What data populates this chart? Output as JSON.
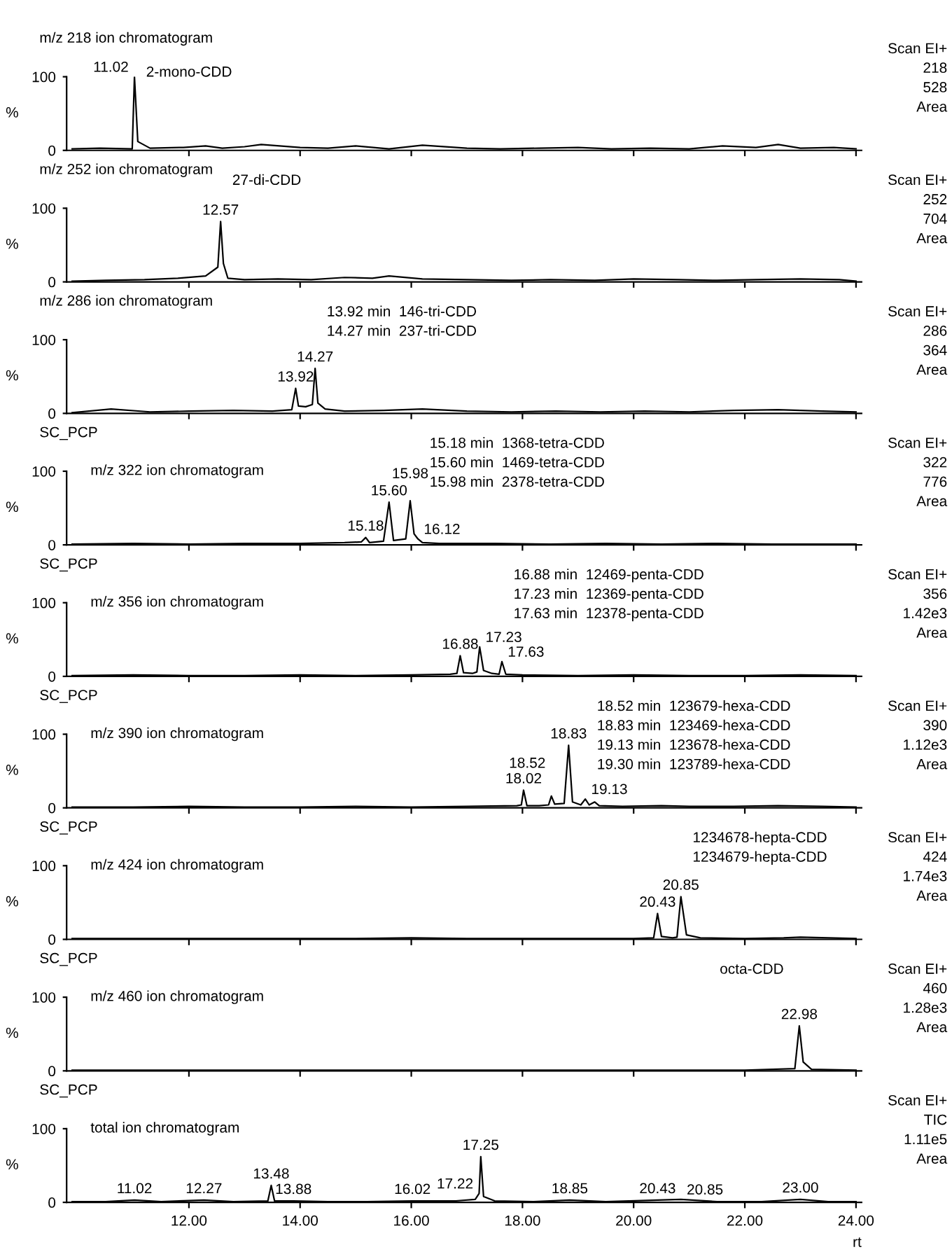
{
  "chart_data": [
    {
      "type": "line",
      "title": "m/z 218 ion chromatogram",
      "ylabel": "%",
      "xlim": [
        9.8,
        24.1
      ],
      "ylim": [
        0,
        100
      ],
      "yticks": [
        0,
        100
      ],
      "tick_labels": "y",
      "xticks": [
        {
          "value": 12,
          "label": null
        },
        {
          "value": 14,
          "label": null
        },
        {
          "value": 16,
          "label": null
        },
        {
          "value": 18,
          "label": null
        },
        {
          "value": 20,
          "label": null
        },
        {
          "value": 22,
          "label": null
        },
        {
          "value": 24,
          "label": null
        }
      ],
      "x": [
        9.9,
        10.4,
        10.98,
        11.02,
        11.08,
        11.3,
        11.9,
        12.3,
        12.6,
        13.0,
        13.3,
        14.0,
        14.5,
        15.0,
        15.6,
        16.2,
        17.0,
        17.6,
        18.3,
        19.0,
        19.6,
        20.3,
        21.0,
        21.6,
        22.2,
        22.6,
        23.0,
        23.6,
        24.0
      ],
      "series": [
        {
          "color": "#000000",
          "values": [
            2,
            3,
            2,
            100,
            12,
            3,
            4,
            6,
            3,
            5,
            8,
            4,
            3,
            6,
            2,
            7,
            3,
            2,
            3,
            4,
            2,
            3,
            2,
            6,
            4,
            8,
            3,
            4,
            2
          ]
        }
      ],
      "annotations": [
        "Scan EI+",
        "218",
        "528",
        "Area",
        {
          "text": "11.02",
          "x": 11.02,
          "y": 100
        },
        "2-mono-CDD"
      ]
    },
    {
      "type": "line",
      "title": "m/z 252 ion chromatogram",
      "ylabel": "%",
      "xlim": [
        9.8,
        24.1
      ],
      "ylim": [
        0,
        100
      ],
      "yticks": [
        0,
        100
      ],
      "tick_labels": "y",
      "xticks": [
        {
          "value": 12,
          "label": null
        },
        {
          "value": 14,
          "label": null
        },
        {
          "value": 16,
          "label": null
        },
        {
          "value": 18,
          "label": null
        },
        {
          "value": 20,
          "label": null
        },
        {
          "value": 22,
          "label": null
        },
        {
          "value": 24,
          "label": null
        }
      ],
      "x": [
        9.9,
        10.5,
        11.2,
        11.8,
        12.3,
        12.52,
        12.57,
        12.62,
        12.7,
        13.0,
        13.6,
        14.2,
        14.8,
        15.3,
        15.6,
        16.2,
        17.0,
        17.8,
        18.5,
        19.3,
        20.0,
        20.8,
        21.5,
        22.2,
        23.0,
        23.7,
        24.0
      ],
      "series": [
        {
          "color": "#000000",
          "values": [
            1,
            2,
            3,
            5,
            8,
            20,
            82,
            25,
            5,
            3,
            4,
            3,
            6,
            5,
            8,
            4,
            3,
            2,
            3,
            2,
            4,
            3,
            2,
            3,
            4,
            3,
            1
          ]
        }
      ],
      "annotations": [
        "Scan EI+",
        "252",
        "704",
        "Area",
        {
          "text": "12.57",
          "x": 12.57,
          "y": 82
        },
        "27-di-CDD"
      ]
    },
    {
      "type": "line",
      "title": "m/z 286 ion chromatogram",
      "ylabel": "%",
      "xlim": [
        9.8,
        24.1
      ],
      "ylim": [
        0,
        100
      ],
      "yticks": [
        0,
        100
      ],
      "tick_labels": "y",
      "xticks": [
        {
          "value": 12,
          "label": null
        },
        {
          "value": 14,
          "label": null
        },
        {
          "value": 16,
          "label": null
        },
        {
          "value": 18,
          "label": null
        },
        {
          "value": 20,
          "label": null
        },
        {
          "value": 22,
          "label": null
        },
        {
          "value": 24,
          "label": null
        }
      ],
      "x": [
        9.9,
        10.6,
        11.3,
        12.0,
        12.8,
        13.5,
        13.85,
        13.92,
        13.97,
        14.1,
        14.22,
        14.27,
        14.32,
        14.45,
        14.8,
        15.5,
        16.2,
        17.0,
        17.8,
        18.6,
        19.4,
        20.2,
        21.0,
        21.8,
        22.6,
        23.4,
        24.0
      ],
      "series": [
        {
          "color": "#000000",
          "values": [
            1,
            6,
            2,
            3,
            4,
            3,
            5,
            34,
            10,
            9,
            12,
            61,
            14,
            6,
            3,
            4,
            6,
            3,
            2,
            3,
            2,
            3,
            2,
            4,
            5,
            3,
            2
          ]
        }
      ],
      "annotations": [
        "Scan EI+",
        "286",
        "364",
        "Area",
        {
          "text": "13.92",
          "x": 13.92,
          "y": 34
        },
        {
          "text": "14.27",
          "x": 14.27,
          "y": 61
        },
        "13.92 min  146-tri-CDD",
        "14.27 min  237-tri-CDD"
      ]
    },
    {
      "type": "line",
      "subtitle": "SC_PCP",
      "title": "m/z 322 ion chromatogram",
      "ylabel": "%",
      "xlim": [
        9.8,
        24.1
      ],
      "ylim": [
        0,
        100
      ],
      "yticks": [
        0,
        100
      ],
      "tick_labels": "y",
      "xticks": [
        {
          "value": 12,
          "label": null
        },
        {
          "value": 14,
          "label": null
        },
        {
          "value": 16,
          "label": null
        },
        {
          "value": 18,
          "label": null
        },
        {
          "value": 20,
          "label": null
        },
        {
          "value": 22,
          "label": null
        },
        {
          "value": 24,
          "label": null
        }
      ],
      "x": [
        9.9,
        11.0,
        12.0,
        13.0,
        14.0,
        14.8,
        15.1,
        15.18,
        15.25,
        15.5,
        15.6,
        15.68,
        15.9,
        15.98,
        16.05,
        16.12,
        16.2,
        16.5,
        17.5,
        18.5,
        19.5,
        20.5,
        21.5,
        22.5,
        24.0
      ],
      "series": [
        {
          "color": "#000000",
          "values": [
            1,
            2,
            1,
            2,
            2,
            3,
            4,
            10,
            3,
            5,
            58,
            6,
            8,
            60,
            15,
            8,
            3,
            2,
            2,
            1,
            2,
            1,
            2,
            1,
            1
          ]
        }
      ],
      "annotations": [
        "Scan EI+",
        "322",
        "776",
        "Area",
        {
          "text": "15.18",
          "x": 15.18,
          "y": 10
        },
        {
          "text": "15.60",
          "x": 15.6,
          "y": 58
        },
        {
          "text": "15.98",
          "x": 15.98,
          "y": 60
        },
        {
          "text": "16.12",
          "x": 16.12,
          "y": 8
        },
        "15.18 min  1368-tetra-CDD",
        "15.60 min  1469-tetra-CDD",
        "15.98 min  2378-tetra-CDD"
      ]
    },
    {
      "type": "line",
      "subtitle": "SC_PCP",
      "title": "m/z 356 ion chromatogram",
      "ylabel": "%",
      "xlim": [
        9.8,
        24.1
      ],
      "ylim": [
        0,
        100
      ],
      "yticks": [
        0,
        100
      ],
      "tick_labels": "y",
      "xticks": [
        {
          "value": 12,
          "label": null
        },
        {
          "value": 14,
          "label": null
        },
        {
          "value": 16,
          "label": null
        },
        {
          "value": 18,
          "label": null
        },
        {
          "value": 20,
          "label": null
        },
        {
          "value": 22,
          "label": null
        },
        {
          "value": 24,
          "label": null
        }
      ],
      "x": [
        9.9,
        11,
        12,
        13,
        14,
        15,
        16,
        16.7,
        16.82,
        16.88,
        16.94,
        17.1,
        17.18,
        17.23,
        17.3,
        17.45,
        17.58,
        17.63,
        17.7,
        18.0,
        19,
        20,
        21,
        22,
        23,
        24.0
      ],
      "series": [
        {
          "color": "#000000",
          "values": [
            1,
            2,
            1,
            1,
            2,
            1,
            2,
            3,
            4,
            28,
            5,
            4,
            6,
            40,
            8,
            4,
            3,
            20,
            3,
            2,
            1,
            2,
            1,
            1,
            2,
            1
          ]
        }
      ],
      "annotations": [
        "Scan EI+",
        "356",
        "1.42e3",
        "Area",
        {
          "text": "16.88",
          "x": 16.88,
          "y": 28
        },
        {
          "text": "17.23",
          "x": 17.23,
          "y": 40
        },
        {
          "text": "17.63",
          "x": 17.63,
          "y": 20
        },
        "16.88 min  12469-penta-CDD",
        "17.23 min  12369-penta-CDD",
        "17.63 min  12378-penta-CDD"
      ]
    },
    {
      "type": "line",
      "subtitle": "SC_PCP",
      "title": "m/z 390 ion chromatogram",
      "ylabel": "%",
      "xlim": [
        9.8,
        24.1
      ],
      "ylim": [
        0,
        100
      ],
      "yticks": [
        0,
        100
      ],
      "tick_labels": "y",
      "xticks": [
        {
          "value": 12,
          "label": null
        },
        {
          "value": 14,
          "label": null
        },
        {
          "value": 16,
          "label": null
        },
        {
          "value": 18,
          "label": null
        },
        {
          "value": 20,
          "label": null
        },
        {
          "value": 22,
          "label": null
        },
        {
          "value": 24,
          "label": null
        }
      ],
      "x": [
        9.9,
        11,
        12,
        13,
        14,
        15,
        16,
        17,
        17.9,
        17.98,
        18.02,
        18.08,
        18.3,
        18.47,
        18.52,
        18.58,
        18.75,
        18.83,
        18.9,
        19.05,
        19.13,
        19.2,
        19.3,
        19.38,
        19.8,
        20.5,
        21,
        21.8,
        22.6,
        23.4,
        24.0
      ],
      "series": [
        {
          "color": "#000000",
          "values": [
            1,
            1,
            2,
            1,
            1,
            2,
            1,
            2,
            3,
            4,
            24,
            3,
            3,
            4,
            16,
            5,
            6,
            85,
            8,
            4,
            12,
            4,
            8,
            3,
            2,
            3,
            2,
            2,
            3,
            2,
            1
          ]
        }
      ],
      "annotations": [
        "Scan EI+",
        "390",
        "1.12e3",
        "Area",
        {
          "text": "18.02",
          "x": 18.02,
          "y": 24
        },
        {
          "text": "18.52",
          "x": 18.52,
          "y": 16
        },
        {
          "text": "18.83",
          "x": 18.83,
          "y": 85
        },
        {
          "text": "19.13",
          "x": 19.13,
          "y": 12
        },
        "18.52 min  123679-hexa-CDD",
        "18.83 min  123469-hexa-CDD",
        "19.13 min  123678-hexa-CDD",
        "19.30 min  123789-hexa-CDD"
      ]
    },
    {
      "type": "line",
      "subtitle": "SC_PCP",
      "title": "m/z 424 ion chromatogram",
      "ylabel": "%",
      "xlim": [
        9.8,
        24.1
      ],
      "ylim": [
        0,
        100
      ],
      "yticks": [
        0,
        100
      ],
      "tick_labels": "y",
      "xticks": [
        {
          "value": 12,
          "label": null
        },
        {
          "value": 14,
          "label": null
        },
        {
          "value": 16,
          "label": null
        },
        {
          "value": 18,
          "label": null
        },
        {
          "value": 20,
          "label": null
        },
        {
          "value": 22,
          "label": null
        },
        {
          "value": 24,
          "label": null
        }
      ],
      "x": [
        9.9,
        11,
        12,
        13,
        14,
        15,
        16,
        17,
        18,
        19,
        20,
        20.36,
        20.43,
        20.5,
        20.7,
        20.78,
        20.85,
        20.95,
        21.2,
        22,
        22.7,
        23,
        24.0
      ],
      "series": [
        {
          "color": "#000000",
          "values": [
            1,
            1,
            1,
            1,
            1,
            1,
            2,
            1,
            1,
            1,
            1,
            2,
            35,
            4,
            2,
            3,
            58,
            6,
            2,
            1,
            2,
            3,
            1
          ]
        }
      ],
      "annotations": [
        "Scan EI+",
        "424",
        "1.74e3",
        "Area",
        {
          "text": "20.43",
          "x": 20.43,
          "y": 35
        },
        {
          "text": "20.85",
          "x": 20.85,
          "y": 58
        },
        "1234678-hepta-CDD",
        "1234679-hepta-CDD"
      ]
    },
    {
      "type": "line",
      "subtitle": "SC_PCP",
      "title": "m/z 460 ion chromatogram",
      "ylabel": "%",
      "xlim": [
        9.8,
        24.1
      ],
      "ylim": [
        0,
        100
      ],
      "yticks": [
        0,
        100
      ],
      "tick_labels": "y",
      "xticks": [
        {
          "value": 12,
          "label": null
        },
        {
          "value": 14,
          "label": null
        },
        {
          "value": 16,
          "label": null
        },
        {
          "value": 18,
          "label": null
        },
        {
          "value": 20,
          "label": null
        },
        {
          "value": 22,
          "label": null
        },
        {
          "value": 24,
          "label": null
        }
      ],
      "x": [
        9.9,
        11,
        12,
        13,
        14,
        15,
        16,
        17,
        18,
        19,
        20,
        21,
        22,
        22.9,
        22.98,
        23.05,
        23.2,
        24.0
      ],
      "series": [
        {
          "color": "#000000",
          "values": [
            1,
            1,
            1,
            1,
            1,
            1,
            1,
            1,
            1,
            1,
            1,
            1,
            1,
            3,
            61,
            12,
            2,
            1
          ]
        }
      ],
      "annotations": [
        "Scan EI+",
        "460",
        "1.28e3",
        "Area",
        {
          "text": "22.98",
          "x": 22.98,
          "y": 61
        },
        "octa-CDD"
      ]
    },
    {
      "type": "line",
      "subtitle": "SC_PCP",
      "title": "total ion chromatogram",
      "ylabel": "%",
      "xlabel": "rt",
      "xlim": [
        9.8,
        24.1
      ],
      "ylim": [
        0,
        100
      ],
      "yticks": [
        0,
        100
      ],
      "xticks": [
        {
          "value": 12,
          "label": "12.00"
        },
        {
          "value": 14,
          "label": "14.00"
        },
        {
          "value": 16,
          "label": "16.00"
        },
        {
          "value": 18,
          "label": "18.00"
        },
        {
          "value": 20,
          "label": "20.00"
        },
        {
          "value": 22,
          "label": "22.00"
        },
        {
          "value": 24,
          "label": "24.00"
        }
      ],
      "x": [
        9.9,
        10.5,
        11.02,
        11.5,
        12.27,
        12.8,
        13.42,
        13.48,
        13.54,
        13.88,
        14.5,
        15.2,
        16.02,
        16.8,
        17.15,
        17.22,
        17.25,
        17.3,
        17.5,
        18.2,
        18.85,
        19.5,
        20.43,
        20.85,
        21.5,
        22.3,
        23.0,
        23.5,
        24.0
      ],
      "series": [
        {
          "color": "#000000",
          "values": [
            1,
            1,
            3,
            1,
            3,
            1,
            2,
            23,
            2,
            2,
            1,
            1,
            2,
            2,
            4,
            12,
            62,
            8,
            2,
            1,
            3,
            1,
            3,
            4,
            1,
            1,
            4,
            1,
            1
          ]
        }
      ],
      "annotations": [
        "Scan EI+",
        "TIC",
        "1.11e5",
        "Area",
        {
          "text": "11.02",
          "x": 11.02,
          "y": 3
        },
        {
          "text": "12.27",
          "x": 12.27,
          "y": 3
        },
        {
          "text": "13.48",
          "x": 13.48,
          "y": 23
        },
        {
          "text": "13.88",
          "x": 13.88,
          "y": 2
        },
        {
          "text": "16.02",
          "x": 16.02,
          "y": 2
        },
        {
          "text": "17.22",
          "x": 17.22,
          "y": 12
        },
        {
          "text": "17.25",
          "x": 17.25,
          "y": 62
        },
        {
          "text": "18.85",
          "x": 18.85,
          "y": 3
        },
        {
          "text": "20.43",
          "x": 20.43,
          "y": 3
        },
        {
          "text": "20.85",
          "x": 20.85,
          "y": 4
        },
        {
          "text": "23.00",
          "x": 23.0,
          "y": 4
        }
      ]
    }
  ]
}
